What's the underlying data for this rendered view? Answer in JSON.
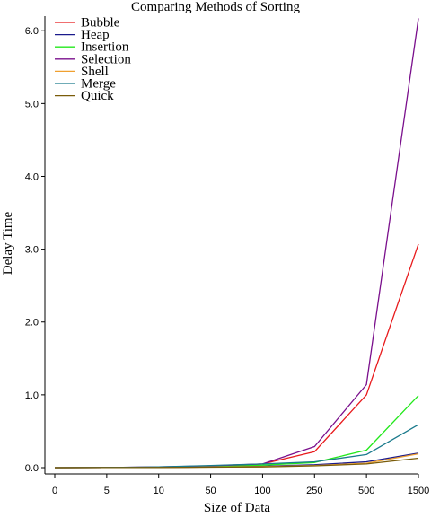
{
  "chart_data": {
    "type": "line",
    "title": "Comparing Methods of Sorting",
    "xlabel": "Size of Data",
    "ylabel": "Delay Time",
    "categories": [
      "0",
      "5",
      "10",
      "50",
      "100",
      "250",
      "500",
      "1500"
    ],
    "x_scale": "categorical (evenly spaced)",
    "ylim": [
      0,
      6.2
    ],
    "yticks": [
      "0.0",
      "1.0",
      "2.0",
      "3.0",
      "4.0",
      "5.0",
      "6.0"
    ],
    "grid": false,
    "legend_position": "top-left",
    "series": [
      {
        "name": "Bubble",
        "color": "#e8191b",
        "values": [
          0,
          0.002,
          0.008,
          0.02,
          0.05,
          0.22,
          1.0,
          3.07
        ]
      },
      {
        "name": "Heap",
        "color": "#1a1a8c",
        "values": [
          0,
          0.001,
          0.003,
          0.01,
          0.02,
          0.04,
          0.08,
          0.2
        ]
      },
      {
        "name": "Insertion",
        "color": "#22e81b",
        "values": [
          0,
          0.002,
          0.006,
          0.015,
          0.035,
          0.07,
          0.24,
          0.99
        ]
      },
      {
        "name": "Selection",
        "color": "#7a0f8c",
        "values": [
          0,
          0.003,
          0.01,
          0.025,
          0.05,
          0.29,
          1.14,
          6.17
        ]
      },
      {
        "name": "Shell",
        "color": "#f0a030",
        "values": [
          0,
          0.001,
          0.002,
          0.008,
          0.015,
          0.03,
          0.06,
          0.19
        ]
      },
      {
        "name": "Merge",
        "color": "#1a7a8c",
        "values": [
          0,
          0.003,
          0.01,
          0.03,
          0.05,
          0.08,
          0.18,
          0.59
        ]
      },
      {
        "name": "Quick",
        "color": "#7a5c0a",
        "values": [
          0,
          0.001,
          0.002,
          0.006,
          0.01,
          0.025,
          0.05,
          0.13
        ]
      }
    ]
  }
}
